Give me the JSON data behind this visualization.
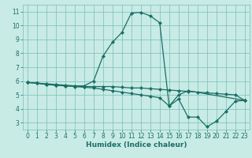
{
  "xlabel": "Humidex (Indice chaleur)",
  "bg_color": "#c8ebe6",
  "grid_color": "#7bbdb4",
  "line_color": "#1a6e65",
  "xlim": [
    -0.5,
    23.5
  ],
  "ylim": [
    2.5,
    11.5
  ],
  "xticks": [
    0,
    1,
    2,
    3,
    4,
    5,
    6,
    7,
    8,
    9,
    10,
    11,
    12,
    13,
    14,
    15,
    16,
    17,
    18,
    19,
    20,
    21,
    22,
    23
  ],
  "yticks": [
    3,
    4,
    5,
    6,
    7,
    8,
    9,
    10,
    11
  ],
  "line1": {
    "x": [
      0,
      1,
      2,
      3,
      4,
      5,
      6,
      7,
      8,
      9,
      10,
      11,
      12,
      13,
      14,
      15,
      16,
      17,
      23
    ],
    "y": [
      5.9,
      5.85,
      5.8,
      5.75,
      5.7,
      5.65,
      5.65,
      6.0,
      7.8,
      8.8,
      9.5,
      10.9,
      10.95,
      10.7,
      10.2,
      4.2,
      5.0,
      5.3,
      4.6
    ]
  },
  "line2": {
    "x": [
      0,
      1,
      2,
      3,
      4,
      5,
      6,
      7,
      8,
      9,
      10,
      11,
      12,
      13,
      14,
      15,
      16,
      17,
      18,
      19,
      20,
      21,
      22,
      23
    ],
    "y": [
      5.9,
      5.85,
      5.75,
      5.7,
      5.65,
      5.65,
      5.6,
      5.6,
      5.6,
      5.6,
      5.55,
      5.5,
      5.5,
      5.45,
      5.4,
      5.35,
      5.3,
      5.25,
      5.2,
      5.15,
      5.1,
      5.05,
      5.0,
      4.6
    ]
  },
  "line3": {
    "x": [
      0,
      1,
      2,
      3,
      4,
      5,
      6,
      7,
      8,
      9,
      10,
      11,
      12,
      13,
      14,
      15,
      16,
      17,
      18,
      19,
      20,
      21,
      22,
      23
    ],
    "y": [
      5.9,
      5.85,
      5.75,
      5.7,
      5.65,
      5.6,
      5.55,
      5.5,
      5.4,
      5.3,
      5.2,
      5.1,
      5.0,
      4.9,
      4.8,
      4.2,
      4.7,
      3.4,
      3.4,
      2.7,
      3.1,
      3.8,
      4.55,
      4.6
    ]
  }
}
